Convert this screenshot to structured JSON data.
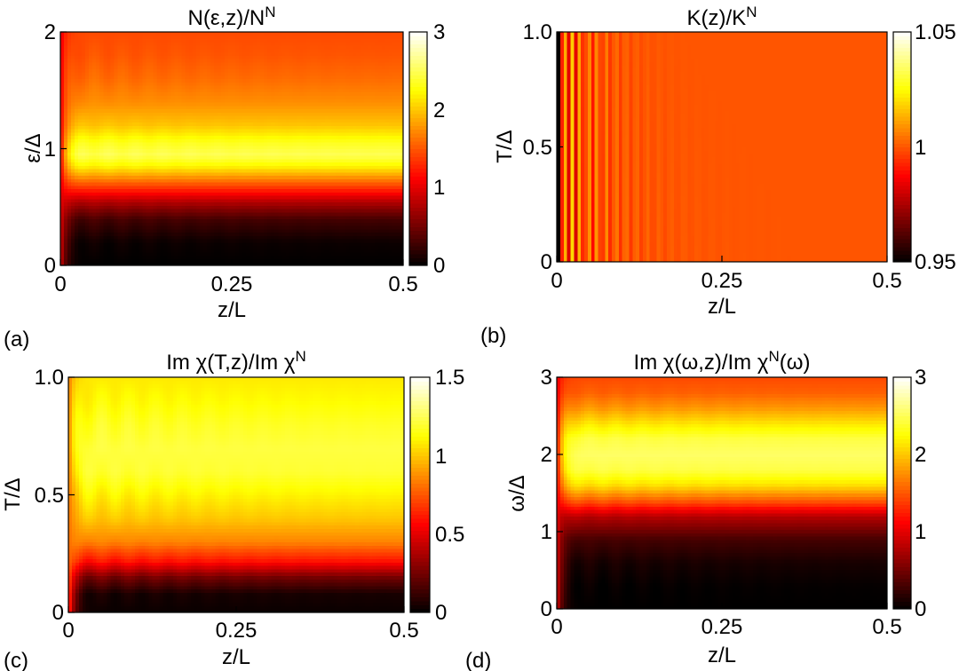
{
  "chart_data": [
    {
      "type": "heatmap",
      "panel_label": "(a)",
      "title_main": "N(ε,z)/N",
      "title_sup": "N",
      "title_tail": "",
      "xlabel": "z/L",
      "ylabel": "ε/Δ",
      "xlim": [
        0,
        0.5
      ],
      "ylim": [
        0,
        2
      ],
      "xticks": [
        "0",
        "0.25",
        "0.5"
      ],
      "yticks": [
        "0",
        "1",
        "2"
      ],
      "colorbar": {
        "range": [
          0,
          3
        ],
        "ticks": [
          "0",
          "1",
          "2",
          "3"
        ]
      },
      "profile": {
        "y": [
          0,
          0.2,
          0.4,
          0.55,
          0.7,
          0.85,
          0.95,
          1.05,
          1.2,
          1.4,
          1.6,
          1.8,
          2.0
        ],
        "v": [
          0.0,
          0.05,
          0.3,
          0.8,
          1.5,
          2.2,
          2.5,
          2.35,
          2.0,
          1.75,
          1.6,
          1.5,
          1.45
        ]
      },
      "edge_value": 1.0,
      "ripple": 0.06
    },
    {
      "type": "heatmap",
      "panel_label": "(b)",
      "title_main": "K(z)/K",
      "title_sup": "N",
      "title_tail": "",
      "xlabel": "z/L",
      "ylabel": "T/Δ",
      "xlim": [
        0,
        0.5
      ],
      "ylim": [
        0,
        1.0
      ],
      "xticks": [
        "0",
        "0.25",
        "0.5"
      ],
      "yticks": [
        "0",
        "0.5",
        "1.0"
      ],
      "colorbar": {
        "range": [
          0.95,
          1.05
        ],
        "ticks": [
          "0.95",
          "1",
          "1.05"
        ]
      },
      "base_value": 1.0,
      "edge_value": 0.95,
      "stripe_amplitude": 0.03
    },
    {
      "type": "heatmap",
      "panel_label": "(c)",
      "title_main": "Im χ(T,z)/Im χ",
      "title_sup": "N",
      "title_tail": "",
      "xlabel": "z/L",
      "ylabel": "T/Δ",
      "xlim": [
        0,
        0.5
      ],
      "ylim": [
        0,
        1.0
      ],
      "xticks": [
        "0",
        "0.25",
        "0.5"
      ],
      "yticks": [
        "0",
        "0.5",
        "1.0"
      ],
      "colorbar": {
        "range": [
          0,
          1.5
        ],
        "ticks": [
          "0",
          "0.5",
          "1",
          "1.5"
        ]
      },
      "profile": {
        "y": [
          0,
          0.08,
          0.15,
          0.22,
          0.3,
          0.4,
          0.5,
          0.6,
          0.7,
          0.8,
          0.9,
          1.0
        ],
        "v": [
          0.02,
          0.05,
          0.25,
          0.6,
          0.85,
          1.0,
          1.1,
          1.2,
          1.22,
          1.18,
          1.12,
          1.08
        ]
      },
      "edge_value": 0.8,
      "ripple": 0.05
    },
    {
      "type": "heatmap",
      "panel_label": "(d)",
      "title_main": "Im χ(ω,z)/Im χ",
      "title_sup": "N",
      "title_tail": "(ω)",
      "xlabel": "z/L",
      "ylabel": "ω/Δ",
      "xlim": [
        0,
        0.5
      ],
      "ylim": [
        0,
        3
      ],
      "xticks": [
        "0",
        "0.25",
        "0.5"
      ],
      "yticks": [
        "0",
        "1",
        "2",
        "3"
      ],
      "colorbar": {
        "range": [
          0,
          3
        ],
        "ticks": [
          "0",
          "1",
          "2",
          "3"
        ]
      },
      "profile": {
        "y": [
          0,
          0.3,
          0.6,
          0.9,
          1.2,
          1.4,
          1.6,
          1.8,
          2.0,
          2.2,
          2.4,
          2.6,
          2.8,
          3.0
        ],
        "v": [
          0.0,
          0.02,
          0.1,
          0.3,
          0.8,
          1.5,
          2.1,
          2.45,
          2.55,
          2.45,
          2.15,
          1.8,
          1.55,
          1.45
        ]
      },
      "edge_value": 1.0,
      "ripple": 0.06
    }
  ]
}
